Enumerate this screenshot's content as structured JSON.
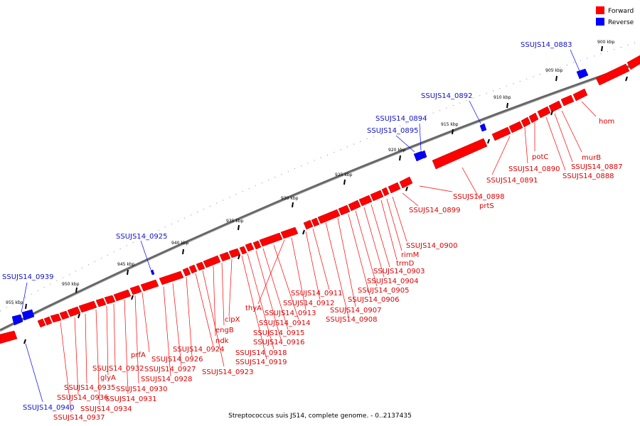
{
  "legend": {
    "forward_label": "Forward",
    "reverse_label": "Reverse",
    "forward_color": "#ff0000",
    "reverse_color": "#0000ff"
  },
  "caption": "Streptococcus suis JS14, complete genome. - 0..2137435",
  "kbp_marks": [
    "900 kbp",
    "905 kbp",
    "910 kbp",
    "915 kbp",
    "920 kbp",
    "925 kbp",
    "930 kbp",
    "935 kbp",
    "940 kbp",
    "945 kbp",
    "950 kbp",
    "955 kbp"
  ],
  "forward_labels": [
    "hom",
    "murB",
    "SSUJS14_0887",
    "SSUJS14_0888",
    "potC",
    "SSUJS14_0890",
    "SSUJS14_0891",
    "SSUJS14_0898",
    "prtS",
    "SSUJS14_0899",
    "SSUJS14_0900",
    "rimM",
    "trmD",
    "SSUJS14_0903",
    "SSUJS14_0904",
    "SSUJS14_0905",
    "SSUJS14_0906",
    "SSUJS14_0907",
    "SSUJS14_0908",
    "SSUJS14_0911",
    "SSUJS14_0912",
    "thyA",
    "SSUJS14_0913",
    "SSUJS14_0914",
    "SSUJS14_0915",
    "SSUJS14_0916",
    "SSUJS14_0918",
    "SSUJS14_0919",
    "clpX",
    "engB",
    "ndk",
    "SSUJS14_0923",
    "SSUJS14_0924",
    "SSUJS14_0926",
    "SSUJS14_0927",
    "SSUJS14_0928",
    "prfA",
    "SSUJS14_0930",
    "SSUJS14_0931",
    "SSUJS14_0932",
    "glyA",
    "SSUJS14_0934",
    "SSUJS14_0935",
    "SSUJS14_0936",
    "SSUJS14_0937"
  ],
  "reverse_labels": [
    "SSUJS14_0883",
    "SSUJS14_0892",
    "SSUJS14_0894",
    "SSUJS14_0895",
    "SSUJS14_0925",
    "SSUJS14_0939",
    "SSUJS14_0940"
  ]
}
